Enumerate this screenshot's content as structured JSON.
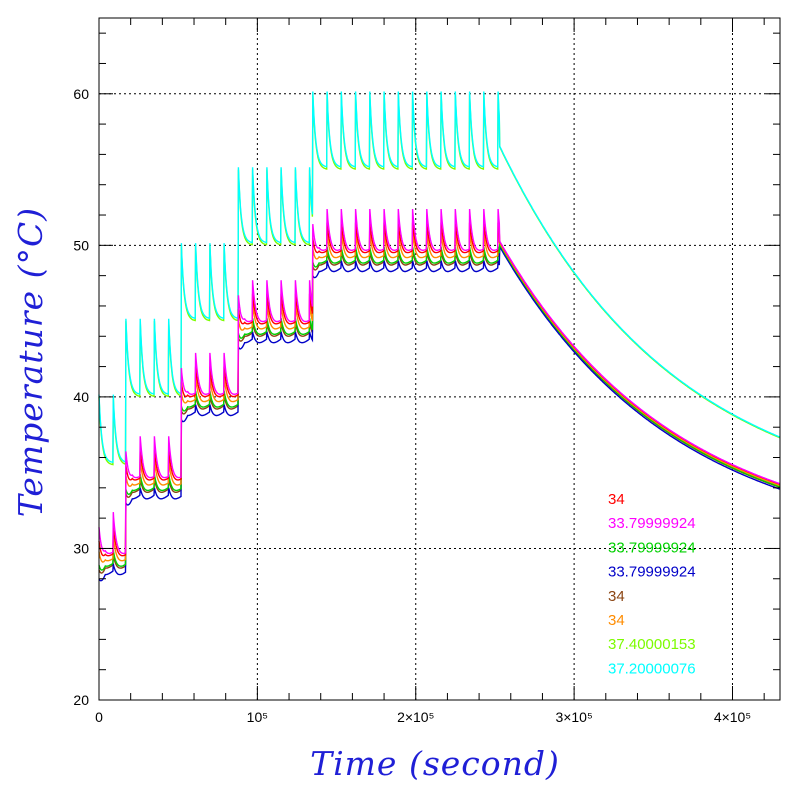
{
  "chart_data": {
    "type": "line",
    "title": "",
    "xlabel": "Time (second)",
    "ylabel": "Temperature (°C)",
    "xlim": [
      0,
      430000
    ],
    "ylim": [
      20,
      65
    ],
    "x_ticks": [
      {
        "value": 0,
        "label": "0"
      },
      {
        "value": 100000,
        "label": "10⁵"
      },
      {
        "value": 200000,
        "label": "2×10⁵"
      },
      {
        "value": 300000,
        "label": "3×10⁵"
      },
      {
        "value": 400000,
        "label": "4×10⁵"
      }
    ],
    "y_ticks": [
      {
        "value": 20,
        "label": "20"
      },
      {
        "value": 30,
        "label": "30"
      },
      {
        "value": 40,
        "label": "40"
      },
      {
        "value": 50,
        "label": "50"
      },
      {
        "value": 60,
        "label": "60"
      }
    ],
    "grid": true,
    "legend_position": "bottom-right",
    "stages": [
      {
        "start": 0,
        "end": 17000,
        "lower_base": 28.5,
        "upper_base": 35.5,
        "upper_peak": 40
      },
      {
        "start": 17000,
        "end": 52000,
        "lower_base": 33.5,
        "upper_base": 40,
        "upper_peak": 45
      },
      {
        "start": 52000,
        "end": 88000,
        "lower_base": 39,
        "upper_base": 45,
        "upper_peak": 50
      },
      {
        "start": 88000,
        "end": 135000,
        "lower_base": 43.8,
        "upper_base": 50,
        "upper_peak": 55
      },
      {
        "start": 135000,
        "end": 253000,
        "lower_base": 48.5,
        "upper_base": 55,
        "upper_peak": 60
      }
    ],
    "cycle_period": 9000,
    "cooling": {
      "start": 253000,
      "lower_start": 50,
      "lower_end": 34,
      "upper_start": 56.5,
      "upper_end": 37.3
    },
    "series": [
      {
        "name": "34",
        "color": "#ff0000",
        "group": "lower",
        "offset": 0.8,
        "spike": 1.8
      },
      {
        "name": "33.79999924",
        "color": "#ff00ff",
        "group": "lower",
        "offset": 0.9,
        "spike": 2.6
      },
      {
        "name": "33.79999924",
        "color": "#00d000",
        "group": "lower",
        "offset": 0.2,
        "spike": 0.8
      },
      {
        "name": "33.79999924",
        "color": "#0000c8",
        "group": "lower",
        "offset": -0.3,
        "spike": 0.4
      },
      {
        "name": "34",
        "color": "#8b4513",
        "group": "lower",
        "offset": 0.1,
        "spike": 0.6
      },
      {
        "name": "34",
        "color": "#ff8c00",
        "group": "lower",
        "offset": 0.5,
        "spike": 1.4
      },
      {
        "name": "37.40000153",
        "color": "#7cfc00",
        "group": "upper",
        "offset": 0.0,
        "spike": 0.0
      },
      {
        "name": "37.20000076",
        "color": "#00ffff",
        "group": "upper",
        "offset": 0.15,
        "spike": 0.0
      }
    ]
  }
}
